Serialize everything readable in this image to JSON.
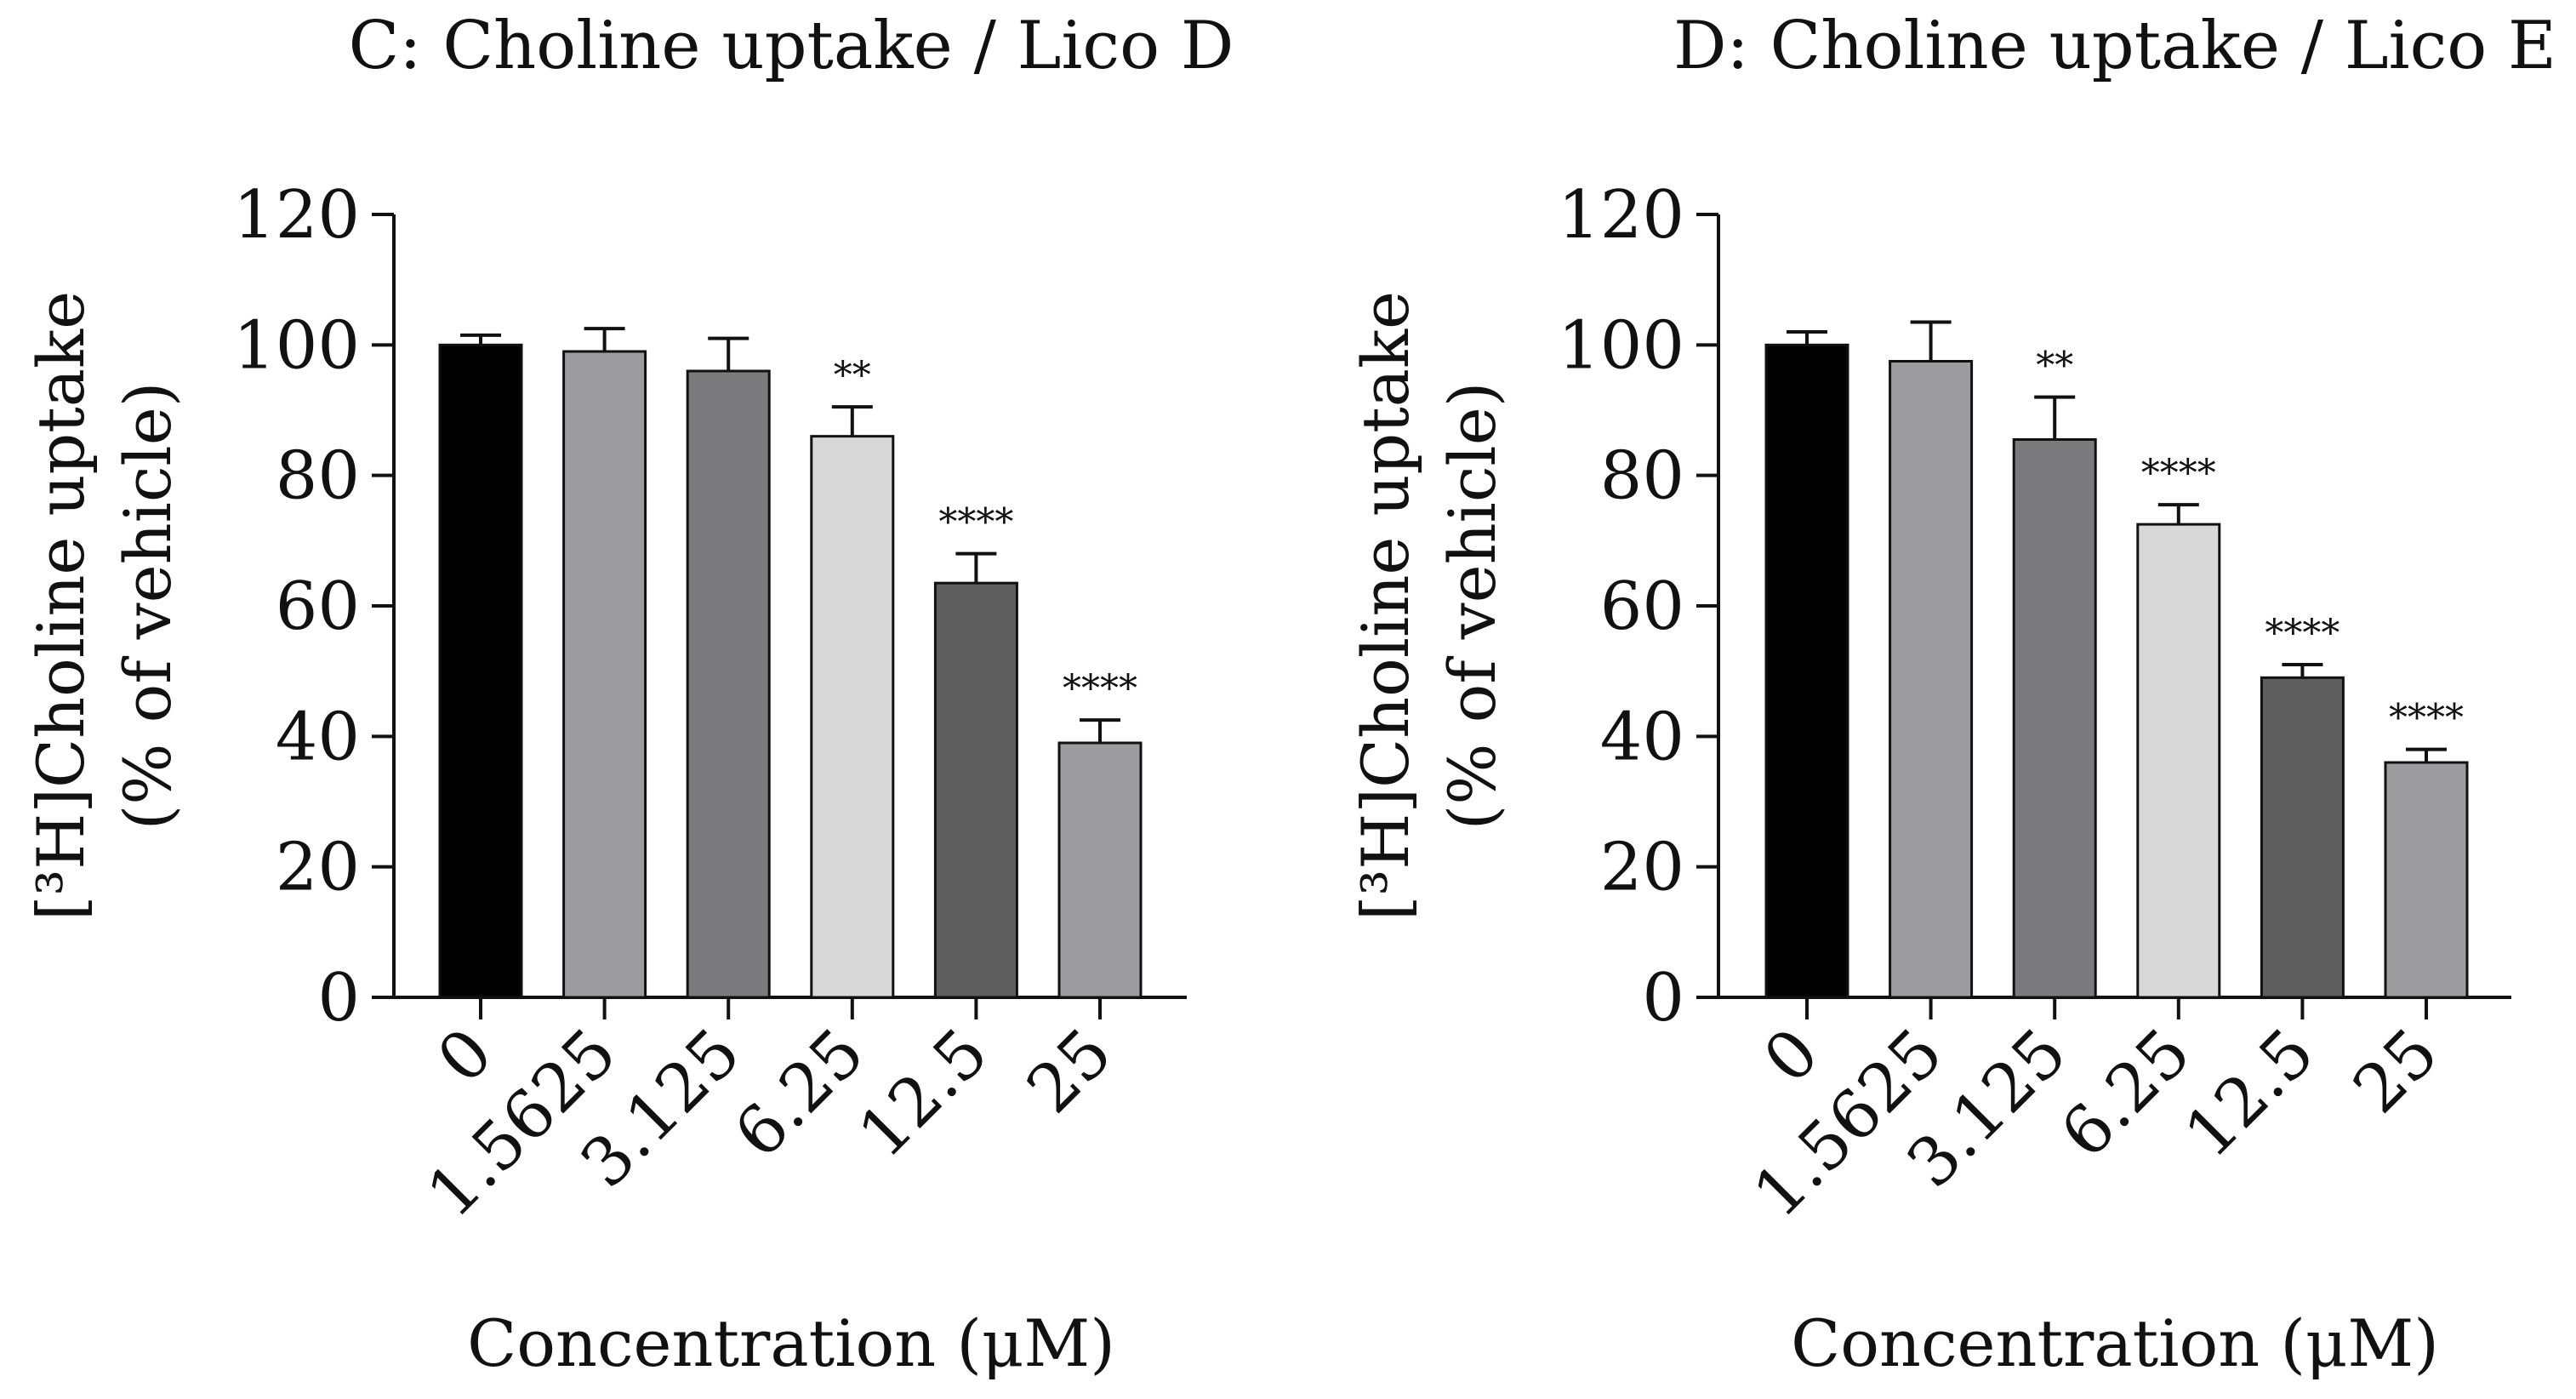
{
  "chart_data": [
    {
      "type": "bar",
      "title": "C: Choline uptake / Lico D",
      "ylabel_line1": "[³H]Choline uptake",
      "ylabel_line2": "(% of vehicle)",
      "xlabel": "Concentration (μM)",
      "ylim": [
        0,
        120
      ],
      "yticks": [
        0,
        20,
        40,
        60,
        80,
        100,
        120
      ],
      "categories": [
        "0",
        "1.5625",
        "3.125",
        "6.25",
        "12.5",
        "25"
      ],
      "values": [
        100,
        99,
        96,
        86,
        63.5,
        39
      ],
      "errors": [
        1.5,
        3.5,
        5,
        4.5,
        4.5,
        3.5
      ],
      "significance": [
        "",
        "",
        "",
        "**",
        "****",
        "****"
      ],
      "bar_colors": [
        "#000000",
        "#9c9c9f",
        "#7b7b7d",
        "#d8d8d8",
        "#5e5e5e",
        "#9c9c9f"
      ],
      "grid": false
    },
    {
      "type": "bar",
      "title": "D: Choline uptake / Lico E",
      "ylabel_line1": "[³H]Choline uptake",
      "ylabel_line2": "(% of vehicle)",
      "xlabel": "Concentration (μM)",
      "ylim": [
        0,
        120
      ],
      "yticks": [
        0,
        20,
        40,
        60,
        80,
        100,
        120
      ],
      "categories": [
        "0",
        "1.5625",
        "3.125",
        "6.25",
        "12.5",
        "25"
      ],
      "values": [
        100,
        97.5,
        85.5,
        72.5,
        49,
        36
      ],
      "errors": [
        2,
        6,
        6.5,
        3,
        2,
        2
      ],
      "significance": [
        "",
        "",
        "**",
        "****",
        "****",
        "****"
      ],
      "bar_colors": [
        "#000000",
        "#9c9c9f",
        "#7b7b7d",
        "#d8d8d8",
        "#5e5e5e",
        "#9c9c9f"
      ],
      "grid": false
    }
  ]
}
